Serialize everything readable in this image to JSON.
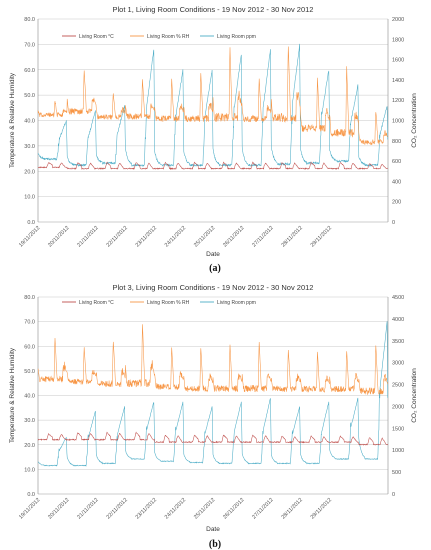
{
  "figure": {
    "panel_labels": [
      "(a)",
      "(b)"
    ]
  },
  "colors": {
    "temperature": "#c0504d",
    "humidity": "#f79646",
    "co2": "#4bacc6",
    "grid": "#c8c8c8",
    "axis": "#9a9a9a"
  },
  "chart_data": [
    {
      "type": "line",
      "title": "Plot 1, Living Room Conditions - 19 Nov 2012 - 30 Nov 2012",
      "xlabel": "Date",
      "ylabel_left": "Temperature & Relative Humidity",
      "ylabel_right": "CO₂ Concentration",
      "ylim_left": [
        0,
        80
      ],
      "ylim_right": [
        0,
        2000
      ],
      "yticks_left": [
        "0.0",
        "10.0",
        "20.0",
        "30.0",
        "40.0",
        "50.0",
        "60.0",
        "70.0",
        "80.0"
      ],
      "yticks_right": [
        "0",
        "200",
        "400",
        "600",
        "800",
        "1000",
        "1200",
        "1400",
        "1600",
        "1800",
        "2000"
      ],
      "x_dates": [
        "19/11/2012",
        "20/11/2012",
        "21/11/2012",
        "22/11/2012",
        "23/11/2012",
        "24/11/2012",
        "25/11/2012",
        "26/11/2012",
        "27/11/2012",
        "28/11/2012",
        "29/11/2012"
      ],
      "grid": true,
      "legend_position": "top",
      "series": [
        {
          "name": "Living Room °C",
          "axis": "left",
          "color_key": "temperature",
          "daily_base": [
            21.5,
            21,
            21,
            21,
            21,
            21,
            21,
            21,
            21,
            21,
            21,
            21
          ],
          "daily_peak": [
            23.5,
            23.5,
            23.5,
            23.5,
            23.5,
            23.5,
            23.5,
            23.5,
            23.5,
            23.5,
            23.5,
            23
          ]
        },
        {
          "name": "Living Room % RH",
          "axis": "left",
          "color_key": "humidity",
          "daily_base": [
            42,
            43,
            41,
            41,
            40,
            40,
            40,
            40,
            40,
            36,
            34,
            31
          ],
          "daily_peak": [
            48,
            61,
            51,
            57,
            57,
            59,
            70,
            57,
            70,
            58,
            62,
            44
          ]
        },
        {
          "name": "Living Room ppm",
          "axis": "right",
          "color_key": "co2",
          "daily_base": [
            620,
            560,
            580,
            560,
            560,
            560,
            560,
            560,
            570,
            580,
            600,
            560
          ],
          "daily_peak": [
            1000,
            1100,
            1150,
            1700,
            1500,
            1500,
            1650,
            1700,
            1750,
            1500,
            1350,
            1150
          ]
        }
      ]
    },
    {
      "type": "line",
      "title": "Plot 3, Living Room Conditions - 19 Nov 2012 - 30 Nov 2012",
      "xlabel": "Date",
      "ylabel_left": "Temperature & Relative Humidity",
      "ylabel_right": "CO₂ Concentration",
      "ylim_left": [
        0,
        80
      ],
      "ylim_right": [
        0,
        4500
      ],
      "yticks_left": [
        "0.0",
        "10.0",
        "20.0",
        "30.0",
        "40.0",
        "50.0",
        "60.0",
        "70.0",
        "80.0"
      ],
      "yticks_right": [
        "0",
        "500",
        "1000",
        "1500",
        "2000",
        "2500",
        "3000",
        "3500",
        "4000",
        "4500"
      ],
      "x_dates": [
        "19/11/2012",
        "20/11/2012",
        "21/11/2012",
        "22/11/2012",
        "23/11/2012",
        "24/11/2012",
        "25/11/2012",
        "26/11/2012",
        "27/11/2012",
        "28/11/2012",
        "29/11/2012"
      ],
      "grid": true,
      "legend_position": "top",
      "series": [
        {
          "name": "Living Room °C",
          "axis": "left",
          "color_key": "temperature",
          "daily_base": [
            22,
            22,
            22,
            22,
            21,
            21,
            21,
            21,
            21,
            21,
            21,
            20
          ],
          "daily_peak": [
            24.5,
            25,
            25,
            25,
            24,
            24,
            24,
            24,
            23.5,
            23.5,
            23.5,
            23
          ]
        },
        {
          "name": "Living Room % RH",
          "axis": "left",
          "color_key": "humidity",
          "daily_base": [
            46,
            45,
            44,
            44,
            43,
            42,
            42,
            42,
            42,
            42,
            42,
            41
          ],
          "daily_peak": [
            64,
            60,
            63,
            70,
            60,
            60,
            61,
            63,
            59,
            58,
            59,
            61
          ]
        },
        {
          "name": "Living Room ppm",
          "axis": "right",
          "color_key": "co2",
          "daily_base": [
            650,
            650,
            700,
            800,
            750,
            720,
            700,
            700,
            700,
            700,
            800,
            800
          ],
          "daily_peak": [
            1300,
            1900,
            2000,
            2100,
            2100,
            2000,
            2100,
            2200,
            2000,
            2100,
            2200,
            3950
          ]
        }
      ]
    }
  ]
}
